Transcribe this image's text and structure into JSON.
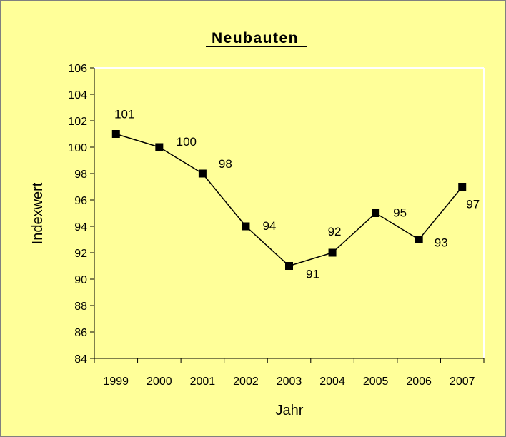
{
  "chart_data": {
    "type": "line",
    "title": "Neubauten",
    "xlabel": "Jahr",
    "ylabel": "Indexwert",
    "categories": [
      "1999",
      "2000",
      "2001",
      "2002",
      "2003",
      "2004",
      "2005",
      "2006",
      "2007"
    ],
    "values": [
      101,
      100,
      98,
      94,
      91,
      92,
      95,
      93,
      97
    ],
    "data_labels": [
      "101",
      "100",
      "98",
      "94",
      "91",
      "92",
      "95",
      "93",
      "97"
    ],
    "ylim": [
      84,
      106
    ],
    "yticks": [
      84,
      86,
      88,
      90,
      92,
      94,
      96,
      98,
      100,
      102,
      104,
      106
    ],
    "grid": false,
    "legend": "none",
    "colors": {
      "background": "#ffff99",
      "plot_area": "#ffff99",
      "line": "#000000",
      "marker": "#000000"
    }
  }
}
